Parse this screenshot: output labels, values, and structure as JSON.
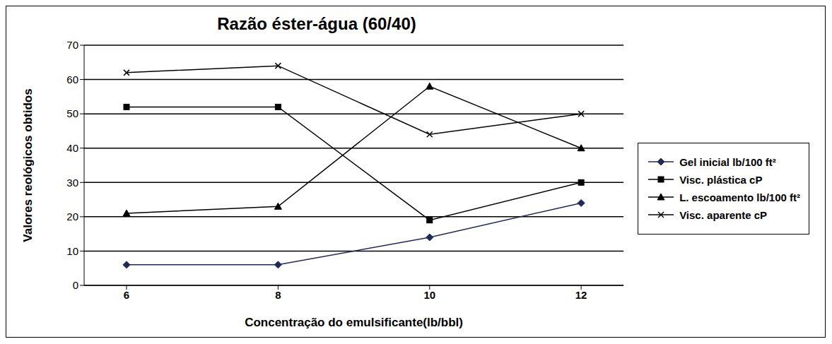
{
  "chart_data": {
    "type": "line",
    "title": "Razão éster-água (60/40)",
    "x_label": "Concentração do emulsificante(lb/bbl)",
    "y_label": "Valores reológicos obtidos",
    "categories": [
      "6",
      "8",
      "10",
      "12"
    ],
    "series": [
      {
        "name": "Gel inicial  lb/100 ft²",
        "color": "#1f2a5c",
        "marker": "diamond",
        "values": [
          6,
          6,
          14,
          24
        ]
      },
      {
        "name": "Visc. plástica cP",
        "color": "#000000",
        "marker": "square",
        "values": [
          52,
          52,
          19,
          30
        ]
      },
      {
        "name": "L. escoamento lb/100 ft²",
        "color": "#000000",
        "marker": "triangle",
        "values": [
          21,
          23,
          58,
          40
        ]
      },
      {
        "name": "Visc. aparente cP",
        "color": "#000000",
        "marker": "x",
        "values": [
          62,
          64,
          44,
          50
        ]
      }
    ],
    "ylim": [
      0,
      70
    ],
    "yticks": [
      0,
      10,
      20,
      30,
      40,
      50,
      60,
      70
    ],
    "grid": true,
    "legend": "right"
  }
}
